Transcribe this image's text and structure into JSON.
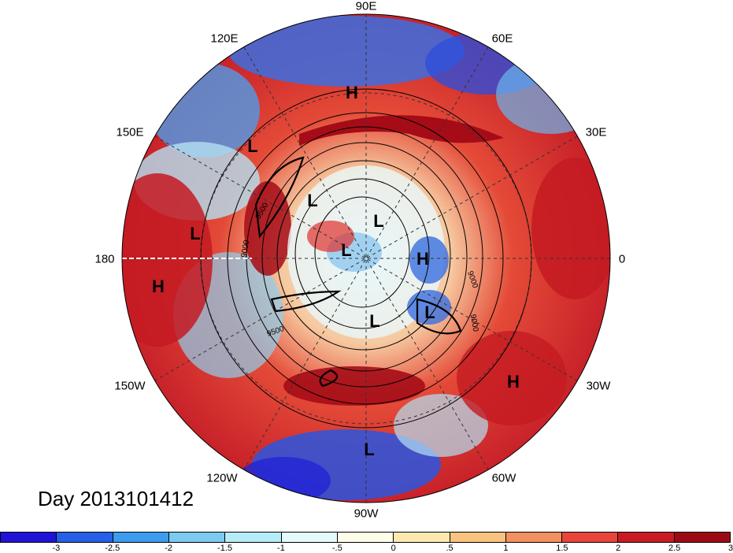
{
  "map": {
    "projection": "north-polar-stereographic",
    "longitude_labels": [
      "90E",
      "60E",
      "30E",
      "0",
      "30W",
      "60W",
      "90W",
      "120W",
      "150W",
      "180",
      "150E",
      "120E"
    ],
    "pressure_systems": [
      {
        "type": "H",
        "lon": "90E"
      },
      {
        "type": "L",
        "lon": "140E"
      },
      {
        "type": "L",
        "lon": "170E"
      },
      {
        "type": "H",
        "lon": "170W"
      },
      {
        "type": "L",
        "lon": "110E"
      },
      {
        "type": "L",
        "lon": "70E"
      },
      {
        "type": "L",
        "lon": "polar"
      },
      {
        "type": "H",
        "lon": "10W"
      },
      {
        "type": "L",
        "lon": "40W"
      },
      {
        "type": "L",
        "lon": "80W"
      },
      {
        "type": "H",
        "lon": "40W"
      },
      {
        "type": "L",
        "lon": "90W"
      }
    ],
    "contour_labels": [
      "9500",
      "9500",
      "9000",
      "9000",
      "9000"
    ],
    "fill_colors": {
      "strong_negative": "#2323d6",
      "negative": "#4f9be8",
      "weak_negative": "#b4ecf7",
      "neutral": "#fff5d8",
      "weak_positive": "#f4a36f",
      "positive": "#e0302b",
      "strong_positive": "#a50c17"
    }
  },
  "day_label": "Day 2013101412",
  "colorbar": {
    "colors": [
      "#1f14d6",
      "#2560e6",
      "#3c9cef",
      "#7ccaf2",
      "#b5ecf8",
      "#e4fbfd",
      "#fdfde8",
      "#fde9b0",
      "#f8c27f",
      "#f2915f",
      "#e9453b",
      "#c81c24",
      "#9c0a14"
    ],
    "ticks": [
      "-3",
      "-2.5",
      "-2",
      "-1.5",
      "-1",
      "-.5",
      "0",
      ".5",
      "1",
      "1.5",
      "2",
      "2.5",
      "3"
    ]
  }
}
